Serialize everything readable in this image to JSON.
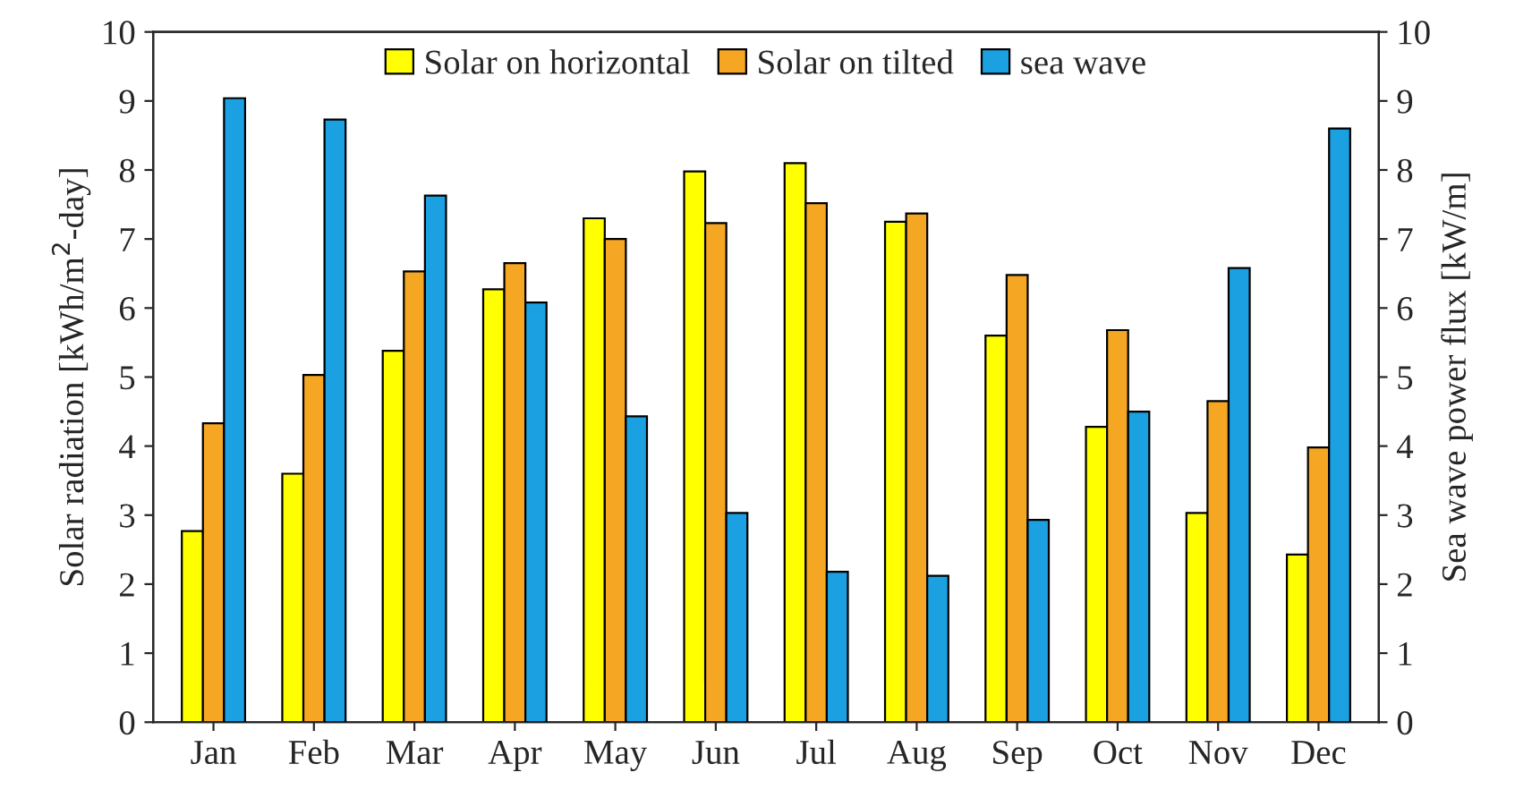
{
  "chart_data": {
    "type": "bar",
    "ylabel": "Solar radiation [kWh/m$^{2}$-day]",
    "y2label": "Sea wave power flux [kW/m]",
    "categories": [
      "Jan",
      "Feb",
      "Mar",
      "Apr",
      "May",
      "Jun",
      "Jul",
      "Aug",
      "Sep",
      "Oct",
      "Nov",
      "Dec"
    ],
    "series": [
      {
        "name": "Solar on horizontal",
        "color": "#ffff00",
        "values": [
          2.77,
          3.6,
          5.38,
          6.27,
          7.3,
          7.98,
          8.1,
          7.25,
          5.6,
          4.28,
          3.03,
          2.43
        ]
      },
      {
        "name": "Solar on tilted",
        "color": "#f5a623",
        "values": [
          4.33,
          5.03,
          6.53,
          6.65,
          7.0,
          7.23,
          7.52,
          7.37,
          6.48,
          5.68,
          4.65,
          3.98
        ]
      },
      {
        "name": "sea wave",
        "color": "#1ba1e2",
        "axis": "y2",
        "values": [
          9.04,
          8.73,
          7.63,
          6.08,
          4.43,
          3.03,
          2.18,
          2.12,
          2.93,
          4.5,
          6.58,
          8.6
        ]
      }
    ],
    "ylim": [
      0,
      10
    ],
    "yticks": [
      0,
      1,
      2,
      3,
      4,
      5,
      6,
      7,
      8,
      9,
      10
    ],
    "y2lim": [
      0,
      10
    ],
    "y2ticks": [
      0,
      1,
      2,
      3,
      4,
      5,
      6,
      7,
      8,
      9,
      10
    ],
    "legend": "top",
    "grid": false
  }
}
